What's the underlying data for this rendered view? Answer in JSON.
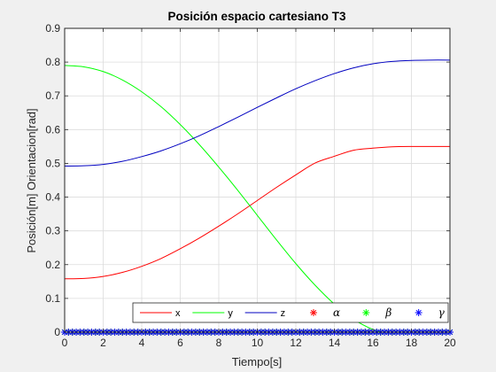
{
  "figure": {
    "background": "#f0f0f0",
    "axes_background": "#ffffff",
    "grid_color": "#dcdcdc",
    "axis_color": "#262626"
  },
  "chart_data": {
    "type": "line",
    "title": "Posición espacio cartesiano T3",
    "xlabel": "Tiempo[s]",
    "ylabel": "Posición[m] Orientacion[rad]",
    "xlim": [
      0,
      20
    ],
    "ylim": [
      0,
      0.9
    ],
    "xticks": [
      0,
      2,
      4,
      6,
      8,
      10,
      12,
      14,
      16,
      18,
      20
    ],
    "yticks": [
      0,
      0.1,
      0.2,
      0.3,
      0.4,
      0.5,
      0.6,
      0.7,
      0.8,
      0.9
    ],
    "grid": true,
    "legend": {
      "placement": "bottom-right",
      "orientation": "horizontal"
    },
    "series": [
      {
        "name": "x",
        "style": "line",
        "color": "#ff0000",
        "x": [
          0,
          1,
          2,
          3,
          4,
          5,
          6,
          7,
          8,
          9,
          10,
          11,
          12,
          13,
          14,
          15,
          16,
          17,
          18,
          19,
          20
        ],
        "y": [
          0.158,
          0.159,
          0.165,
          0.177,
          0.195,
          0.218,
          0.247,
          0.279,
          0.314,
          0.351,
          0.39,
          0.429,
          0.466,
          0.501,
          0.521,
          0.539,
          0.545,
          0.549,
          0.55,
          0.55,
          0.55
        ]
      },
      {
        "name": "y",
        "style": "line",
        "color": "#00ff00",
        "x": [
          0,
          1,
          2,
          3,
          4,
          5,
          6,
          7,
          8,
          9,
          10,
          11,
          12,
          13,
          14,
          15,
          16,
          17,
          18,
          19,
          20
        ],
        "y": [
          0.79,
          0.786,
          0.772,
          0.747,
          0.712,
          0.668,
          0.615,
          0.555,
          0.489,
          0.419,
          0.346,
          0.273,
          0.203,
          0.139,
          0.083,
          0.038,
          0.008,
          -0.01,
          -0.018,
          -0.02,
          -0.02
        ]
      },
      {
        "name": "z",
        "style": "line",
        "color": "#0000c0",
        "x": [
          0,
          1,
          2,
          3,
          4,
          5,
          6,
          7,
          8,
          9,
          10,
          11,
          12,
          13,
          14,
          15,
          16,
          17,
          18,
          19,
          20
        ],
        "y": [
          0.492,
          0.493,
          0.497,
          0.506,
          0.52,
          0.537,
          0.558,
          0.582,
          0.609,
          0.637,
          0.666,
          0.694,
          0.721,
          0.745,
          0.766,
          0.783,
          0.795,
          0.802,
          0.805,
          0.806,
          0.806
        ]
      },
      {
        "name": "α",
        "style": "marker",
        "color": "#ff0000",
        "x_step": 0.2,
        "value": 0
      },
      {
        "name": "β",
        "style": "marker",
        "color": "#00ff00",
        "x_step": 0.2,
        "value": 0
      },
      {
        "name": "γ",
        "style": "marker",
        "color": "#0000ff",
        "x_step": 0.2,
        "value": 0
      }
    ]
  }
}
